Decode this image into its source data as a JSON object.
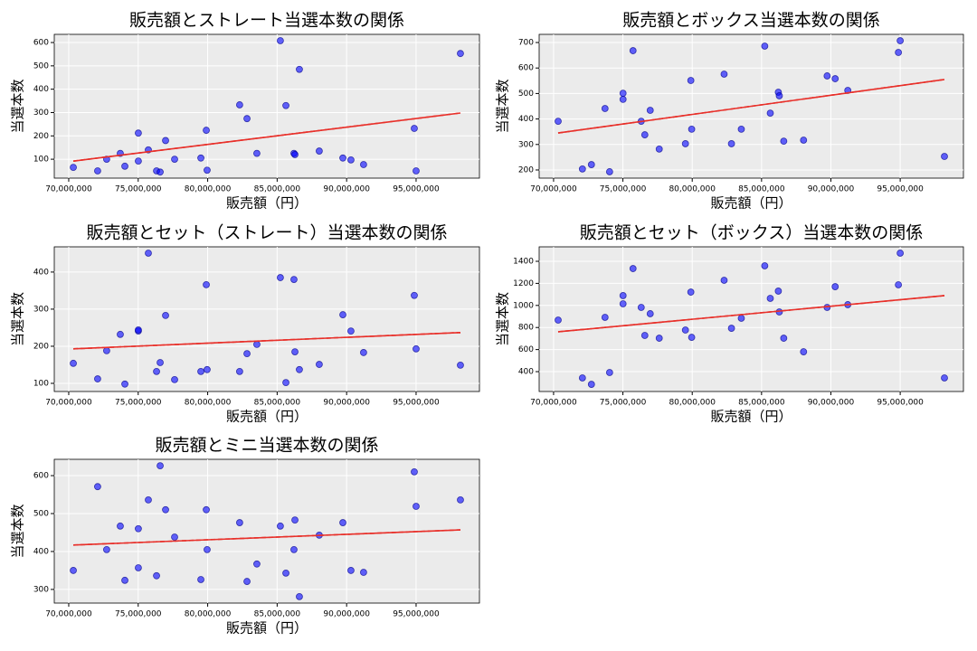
{
  "chart_data": [
    {
      "type": "scatter",
      "title": "販売額とストレート当選本数の関係",
      "xlabel": "販売額（円）",
      "ylabel": "当選本数",
      "x": [
        70330000,
        72080000,
        72730000,
        73710000,
        74040000,
        75010000,
        75010000,
        75730000,
        76320000,
        76580000,
        76970000,
        77620000,
        79510000,
        79900000,
        79960000,
        82300000,
        82830000,
        83540000,
        85230000,
        85630000,
        86210000,
        86280000,
        86600000,
        88030000,
        89730000,
        90310000,
        91220000,
        94870000,
        95000000,
        98190000
      ],
      "y": [
        65,
        50,
        100,
        125,
        70,
        212,
        92,
        140,
        50,
        45,
        180,
        100,
        105,
        224,
        53,
        333,
        274,
        125,
        608,
        330,
        125,
        120,
        485,
        135,
        105,
        97,
        77,
        232,
        50,
        553
      ],
      "color": "#0000ff",
      "trendline": {
        "x": [
          70330000,
          98190000
        ],
        "y": [
          92,
          298
        ],
        "color": "#e8302a"
      },
      "xlim": [
        68960000,
        99560000
      ],
      "ylim": [
        19,
        635
      ],
      "xticks": [
        {
          "value": 70000000,
          "label": "70,000,000"
        },
        {
          "value": 75000000,
          "label": "75,000,000"
        },
        {
          "value": 80000000,
          "label": "80,000,000"
        },
        {
          "value": 85000000,
          "label": "85,000,000"
        },
        {
          "value": 90000000,
          "label": "90,000,000"
        },
        {
          "value": 95000000,
          "label": "95,000,000"
        }
      ],
      "yticks": [
        100,
        200,
        300,
        400,
        500,
        600
      ],
      "grid": true
    },
    {
      "type": "scatter",
      "title": "販売額とボックス当選本数の関係",
      "xlabel": "販売額（円）",
      "ylabel": "当選本数",
      "x": [
        70330000,
        72080000,
        72730000,
        73710000,
        74040000,
        75010000,
        75010000,
        75730000,
        76320000,
        76580000,
        76970000,
        77620000,
        79510000,
        79900000,
        79960000,
        82300000,
        82830000,
        83540000,
        85230000,
        85630000,
        86210000,
        86280000,
        86600000,
        88030000,
        89730000,
        90310000,
        91220000,
        94870000,
        95000000,
        98190000
      ],
      "y": [
        391,
        204,
        221,
        441,
        193,
        501,
        477,
        668,
        391,
        338,
        434,
        282,
        303,
        551,
        360,
        576,
        303,
        360,
        686,
        423,
        505,
        491,
        313,
        317,
        569,
        558,
        512,
        661,
        707,
        253
      ],
      "color": "#0000ff",
      "trendline": {
        "x": [
          70330000,
          98190000
        ],
        "y": [
          345,
          555
        ],
        "color": "#e8302a"
      },
      "xlim": [
        68960000,
        99560000
      ],
      "ylim": [
        168,
        732
      ],
      "xticks": [
        {
          "value": 70000000,
          "label": "70,000,000"
        },
        {
          "value": 75000000,
          "label": "75,000,000"
        },
        {
          "value": 80000000,
          "label": "80,000,000"
        },
        {
          "value": 85000000,
          "label": "85,000,000"
        },
        {
          "value": 90000000,
          "label": "90,000,000"
        },
        {
          "value": 95000000,
          "label": "95,000,000"
        }
      ],
      "yticks": [
        200,
        300,
        400,
        500,
        600,
        700
      ],
      "grid": true
    },
    {
      "type": "scatter",
      "title": "販売額とセット（ストレート）当選本数の関係",
      "xlabel": "販売額（円）",
      "ylabel": "当選本数",
      "x": [
        70330000,
        72080000,
        72730000,
        73710000,
        74040000,
        75010000,
        75010000,
        75730000,
        76320000,
        76580000,
        76970000,
        77620000,
        79510000,
        79900000,
        79960000,
        82300000,
        82830000,
        83540000,
        85230000,
        85630000,
        86210000,
        86280000,
        86600000,
        88030000,
        89730000,
        90310000,
        91220000,
        94870000,
        95000000,
        98190000
      ],
      "y": [
        154,
        112,
        188,
        232,
        98,
        241,
        244,
        451,
        132,
        156,
        283,
        110,
        132,
        366,
        137,
        132,
        180,
        205,
        385,
        102,
        380,
        185,
        137,
        151,
        285,
        241,
        183,
        337,
        193,
        149
      ],
      "color": "#0000ff",
      "trendline": {
        "x": [
          70330000,
          98190000
        ],
        "y": [
          193,
          237
        ],
        "color": "#e8302a"
      },
      "xlim": [
        68960000,
        99560000
      ],
      "ylim": [
        78,
        468
      ],
      "xticks": [
        {
          "value": 70000000,
          "label": "70,000,000"
        },
        {
          "value": 75000000,
          "label": "75,000,000"
        },
        {
          "value": 80000000,
          "label": "80,000,000"
        },
        {
          "value": 85000000,
          "label": "85,000,000"
        },
        {
          "value": 90000000,
          "label": "90,000,000"
        },
        {
          "value": 95000000,
          "label": "95,000,000"
        }
      ],
      "yticks": [
        100,
        200,
        300,
        400
      ],
      "grid": true
    },
    {
      "type": "scatter",
      "title": "販売額とセット（ボックス）当選本数の関係",
      "xlabel": "販売額（円）",
      "ylabel": "当選本数",
      "x": [
        70330000,
        72080000,
        72730000,
        73710000,
        74040000,
        75010000,
        75010000,
        75730000,
        76320000,
        76580000,
        76970000,
        77620000,
        79510000,
        79900000,
        79960000,
        82300000,
        82830000,
        83540000,
        85230000,
        85630000,
        86210000,
        86280000,
        86600000,
        88030000,
        89730000,
        90310000,
        91220000,
        94870000,
        95000000,
        98190000
      ],
      "y": [
        867,
        343,
        285,
        892,
        392,
        1089,
        1015,
        1334,
        982,
        728,
        925,
        703,
        777,
        1121,
        711,
        1228,
        793,
        884,
        1359,
        1064,
        1130,
        941,
        703,
        580,
        982,
        1170,
        1007,
        1187,
        1474,
        343
      ],
      "color": "#0000ff",
      "trendline": {
        "x": [
          70330000,
          98190000
        ],
        "y": [
          761,
          1089
        ],
        "color": "#e8302a"
      },
      "xlim": [
        68960000,
        99560000
      ],
      "ylim": [
        220,
        1531
      ],
      "xticks": [
        {
          "value": 70000000,
          "label": "70,000,000"
        },
        {
          "value": 75000000,
          "label": "75,000,000"
        },
        {
          "value": 80000000,
          "label": "80,000,000"
        },
        {
          "value": 85000000,
          "label": "85,000,000"
        },
        {
          "value": 90000000,
          "label": "90,000,000"
        },
        {
          "value": 95000000,
          "label": "95,000,000"
        }
      ],
      "yticks": [
        400,
        600,
        800,
        1000,
        1200,
        1400
      ],
      "grid": true
    },
    {
      "type": "scatter",
      "title": "販売額とミニ当選本数の関係",
      "xlabel": "販売額（円）",
      "ylabel": "当選本数",
      "x": [
        70330000,
        72080000,
        72730000,
        73710000,
        74040000,
        75010000,
        75010000,
        75730000,
        76320000,
        76580000,
        76970000,
        77620000,
        79510000,
        79900000,
        79960000,
        82300000,
        82830000,
        83540000,
        85230000,
        85630000,
        86210000,
        86280000,
        86600000,
        88030000,
        89730000,
        90310000,
        91220000,
        94870000,
        95000000,
        98190000
      ],
      "y": [
        350,
        571,
        405,
        467,
        324,
        460,
        357,
        536,
        336,
        626,
        510,
        438,
        326,
        510,
        405,
        476,
        321,
        367,
        467,
        343,
        405,
        483,
        281,
        443,
        476,
        350,
        345,
        610,
        519,
        536
      ],
      "color": "#0000ff",
      "trendline": {
        "x": [
          70330000,
          98190000
        ],
        "y": [
          417,
          457
        ],
        "color": "#e8302a"
      },
      "xlim": [
        68960000,
        99560000
      ],
      "ylim": [
        264,
        643
      ],
      "xticks": [
        {
          "value": 70000000,
          "label": "70,000,000"
        },
        {
          "value": 75000000,
          "label": "75,000,000"
        },
        {
          "value": 80000000,
          "label": "80,000,000"
        },
        {
          "value": 85000000,
          "label": "85,000,000"
        },
        {
          "value": 90000000,
          "label": "90,000,000"
        },
        {
          "value": 95000000,
          "label": "95,000,000"
        }
      ],
      "yticks": [
        300,
        400,
        500,
        600
      ],
      "grid": true
    }
  ]
}
